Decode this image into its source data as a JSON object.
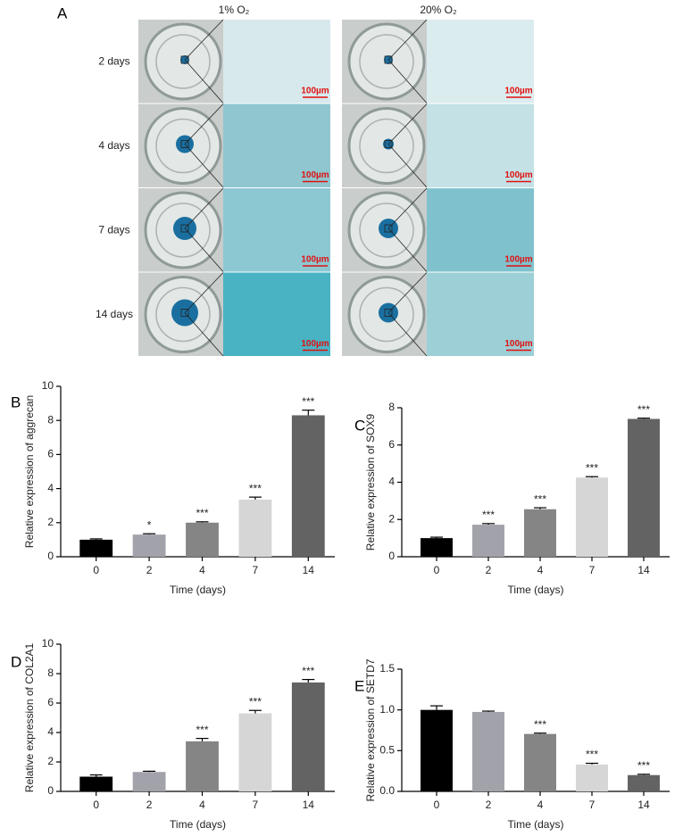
{
  "panel_a": {
    "label": "A",
    "columns": [
      "1% O₂",
      "20% O₂"
    ],
    "rows": [
      "2 days",
      "4 days",
      "7 days",
      "14 days"
    ],
    "scale_bar": "100µm"
  },
  "chart_data": [
    {
      "type": "bar",
      "panel": "B",
      "y_label": "Relative expression of aggrecan",
      "x_label": "Time (days)",
      "categories": [
        "0",
        "2",
        "4",
        "7",
        "14"
      ],
      "values": [
        1.0,
        1.3,
        2.0,
        3.35,
        8.3
      ],
      "errors": [
        0.05,
        0.05,
        0.05,
        0.15,
        0.3
      ],
      "annotations": [
        null,
        "*",
        "***",
        "***",
        "***"
      ],
      "colors": [
        "#000000",
        "#a2a2aa",
        "#858585",
        "#d6d6d6",
        "#636363"
      ],
      "ylim": [
        0,
        10
      ],
      "yticks": [
        0,
        2,
        4,
        6,
        8,
        10
      ]
    },
    {
      "type": "bar",
      "panel": "C",
      "y_label": "Relative expression of SOX9",
      "x_label": "Time (days)",
      "categories": [
        "0",
        "2",
        "4",
        "7",
        "14"
      ],
      "values": [
        1.0,
        1.72,
        2.55,
        4.25,
        7.4
      ],
      "errors": [
        0.05,
        0.06,
        0.08,
        0.05,
        0.04
      ],
      "annotations": [
        null,
        "***",
        "***",
        "***",
        "***"
      ],
      "colors": [
        "#000000",
        "#a2a2aa",
        "#858585",
        "#d6d6d6",
        "#636363"
      ],
      "ylim": [
        0,
        8
      ],
      "yticks": [
        0,
        2,
        4,
        6,
        8
      ]
    },
    {
      "type": "bar",
      "panel": "D",
      "y_label": "Relative expression of COL2A1",
      "x_label": "Time (days)",
      "categories": [
        "0",
        "2",
        "4",
        "7",
        "14"
      ],
      "values": [
        1.0,
        1.32,
        3.4,
        5.3,
        7.4
      ],
      "errors": [
        0.12,
        0.05,
        0.2,
        0.2,
        0.2
      ],
      "annotations": [
        null,
        null,
        "***",
        "***",
        "***"
      ],
      "colors": [
        "#000000",
        "#a2a2aa",
        "#858585",
        "#d6d6d6",
        "#636363"
      ],
      "ylim": [
        0,
        10
      ],
      "yticks": [
        0,
        2,
        4,
        6,
        8,
        10
      ]
    },
    {
      "type": "bar",
      "panel": "E",
      "y_label": "Relative expression of SETD7",
      "x_label": "Time (days)",
      "categories": [
        "0",
        "2",
        "4",
        "7",
        "14"
      ],
      "values": [
        1.0,
        0.975,
        0.705,
        0.33,
        0.2
      ],
      "errors": [
        0.05,
        0.01,
        0.01,
        0.015,
        0.01
      ],
      "annotations": [
        null,
        null,
        "***",
        "***",
        "***"
      ],
      "colors": [
        "#000000",
        "#a2a2aa",
        "#858585",
        "#d6d6d6",
        "#636363"
      ],
      "ylim": [
        0,
        1.5
      ],
      "yticks": [
        {
          "value": 0,
          "label": "0.0"
        },
        0.5,
        {
          "value": 1,
          "label": "1.0"
        },
        1.5
      ]
    }
  ]
}
